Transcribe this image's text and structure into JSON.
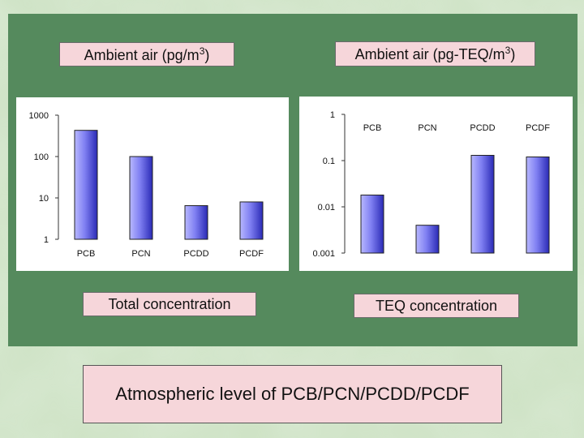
{
  "labels": {
    "left_top": "Ambient air (pg/m3)",
    "right_top": "Ambient air (pg-TEQ/m3)",
    "left_bottom": "Total concentration",
    "right_bottom": "TEQ concentration",
    "footer": "Atmospheric level of PCB/PCN/PCDD/PCDF"
  },
  "colors": {
    "panel": "#558a5d",
    "label_bg": "#f6d6da",
    "bar_light": "#b8b8ff",
    "bar_dark": "#2a2ab5"
  },
  "chart_data": [
    {
      "type": "bar",
      "scale": "log",
      "categories": [
        "PCB",
        "PCN",
        "PCDD",
        "PCDF"
      ],
      "values": [
        430,
        100,
        6.5,
        8
      ],
      "ylim": [
        1,
        1000
      ],
      "yticks": [
        "1",
        "10",
        "100",
        "1000"
      ],
      "category_position": "bottom",
      "grid": false
    },
    {
      "type": "bar",
      "scale": "log",
      "categories": [
        "PCB",
        "PCN",
        "PCDD",
        "PCDF"
      ],
      "values": [
        0.018,
        0.004,
        0.13,
        0.12
      ],
      "ylim": [
        0.001,
        1
      ],
      "yticks": [
        "0.001",
        "0.01",
        "0.1",
        "1"
      ],
      "category_position": "top",
      "grid": false
    }
  ]
}
